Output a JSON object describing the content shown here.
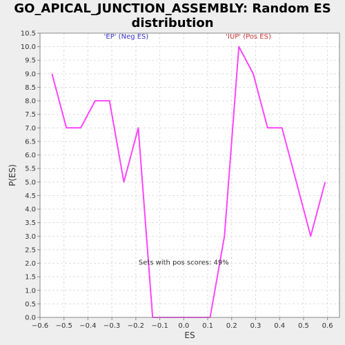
{
  "chart_data": {
    "type": "line",
    "title_lines": [
      "GO_APICAL_JUNCTION_ASSEMBLY: Random ES",
      "distribution"
    ],
    "xlabel": "ES",
    "ylabel": "P(ES)",
    "xlim": [
      -0.6,
      0.65
    ],
    "ylim": [
      0.0,
      10.5
    ],
    "xticks": [
      -0.6,
      -0.5,
      -0.4,
      -0.3,
      -0.2,
      -0.1,
      0.0,
      0.1,
      0.2,
      0.3,
      0.4,
      0.5,
      0.6
    ],
    "xtick_labels": [
      "−0.6",
      "−0.5",
      "−0.4",
      "−0.3",
      "−0.2",
      "−0.1",
      "0.0",
      "0.1",
      "0.2",
      "0.3",
      "0.4",
      "0.5",
      "0.6"
    ],
    "yticks": [
      0.0,
      0.5,
      1.0,
      1.5,
      2.0,
      2.5,
      3.0,
      3.5,
      4.0,
      4.5,
      5.0,
      5.5,
      6.0,
      6.5,
      7.0,
      7.5,
      8.0,
      8.5,
      9.0,
      9.5,
      10.0,
      10.5
    ],
    "ytick_labels": [
      "0.0",
      "0.5",
      "1.0",
      "1.5",
      "2.0",
      "2.5",
      "3.0",
      "3.5",
      "4.0",
      "4.5",
      "5.0",
      "5.5",
      "6.0",
      "6.5",
      "7.0",
      "7.5",
      "8.0",
      "8.5",
      "9.0",
      "9.5",
      "10.0",
      "10.5"
    ],
    "grid": true,
    "series": [
      {
        "color": "#ff44ff",
        "x": [
          -0.55,
          -0.49,
          -0.43,
          -0.37,
          -0.31,
          -0.25,
          -0.19,
          -0.13,
          -0.07,
          -0.01,
          0.05,
          0.11,
          0.17,
          0.23,
          0.29,
          0.35,
          0.41,
          0.47,
          0.53,
          0.59
        ],
        "y": [
          9.0,
          7.0,
          7.0,
          8.0,
          8.0,
          5.0,
          7.0,
          0.0,
          0.0,
          0.0,
          0.0,
          0.0,
          3.0,
          10.0,
          9.0,
          7.0,
          7.0,
          5.0,
          3.0,
          5.0
        ]
      }
    ],
    "annotations": [
      {
        "text": "'EP' (Neg ES)",
        "x": -0.24,
        "y": 10.3,
        "color": "#3333cc"
      },
      {
        "text": "'IUP' (Pos ES)",
        "x": 0.27,
        "y": 10.3,
        "color": "#cc3333"
      },
      {
        "text": "Sets with pos scores: 49%",
        "x": 0.0,
        "y": 1.95,
        "color": "#333333"
      }
    ]
  }
}
